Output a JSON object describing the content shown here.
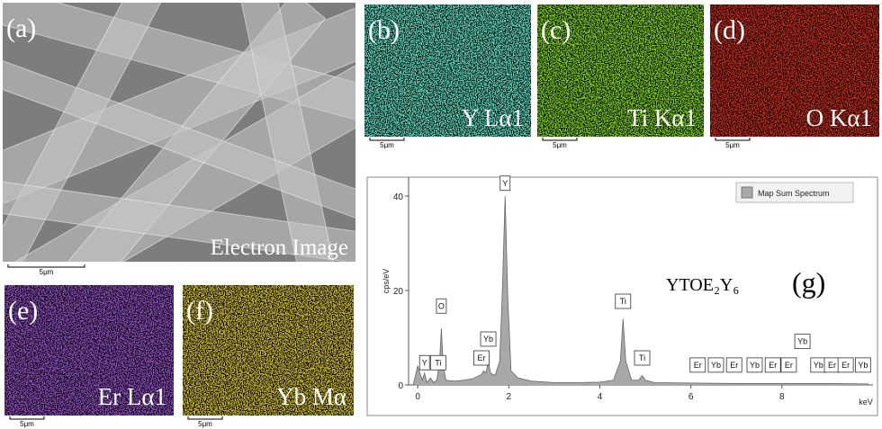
{
  "panels": [
    {
      "label": "(a)",
      "caption": "Electron Image",
      "scale_bar": "5μm"
    },
    {
      "label": "(b)",
      "caption": "Y Lα1",
      "scale_bar": "5μm",
      "color": "#58d6bd"
    },
    {
      "label": "(c)",
      "caption": "Ti Kα1",
      "scale_bar": "5μm",
      "color": "#7acc1a"
    },
    {
      "label": "(d)",
      "caption": "O Kα1",
      "scale_bar": "5μm",
      "color": "#c42a1a"
    },
    {
      "label": "(e)",
      "caption": "Er Lα1",
      "scale_bar": "5μm",
      "color": "#8c4cbc"
    },
    {
      "label": "(f)",
      "caption": "Yb Mα",
      "scale_bar": "5μm",
      "color": "#c9b62e"
    }
  ],
  "chart_data": {
    "type": "area",
    "panel_label": "(g)",
    "annotation": "YTOE₂Y₆",
    "y_label": "cps/eV",
    "x_label": "keV",
    "x": [
      -0.1,
      0,
      0.1,
      0.15,
      0.2,
      0.28,
      0.35,
      0.42,
      0.48,
      0.52,
      0.56,
      0.62,
      0.8,
      1.0,
      1.2,
      1.4,
      1.45,
      1.5,
      1.55,
      1.6,
      1.7,
      1.8,
      1.86,
      1.92,
      1.98,
      2.05,
      2.2,
      2.5,
      3,
      3.5,
      4,
      4.3,
      4.45,
      4.51,
      4.57,
      4.7,
      4.85,
      4.93,
      5.0,
      5.2,
      6,
      7,
      8,
      9,
      9.9
    ],
    "series": [
      {
        "name": "Map Sum Spectrum",
        "color": "#a8a8a8",
        "values": [
          0,
          4,
          1,
          2.5,
          0.5,
          1.5,
          0.5,
          1,
          5,
          12,
          4,
          1,
          0.8,
          1,
          1.3,
          2.2,
          3,
          2.5,
          5,
          2.5,
          2,
          5,
          20,
          40,
          18,
          3,
          1.5,
          0.8,
          0.5,
          0.5,
          0.6,
          1,
          5,
          14,
          5,
          1,
          1,
          2,
          1,
          0.5,
          0.4,
          0.3,
          0.3,
          0.3,
          0.2
        ]
      }
    ],
    "xlim": [
      -0.2,
      10
    ],
    "ylim": [
      0,
      44
    ],
    "xticks": [
      0,
      2,
      4,
      6,
      8
    ],
    "yticks": [
      0,
      20,
      40
    ],
    "peaks": [
      {
        "label": "Y",
        "x": 0.15,
        "y": 3
      },
      {
        "label": "Ti",
        "x": 0.45,
        "y": 3
      },
      {
        "label": "O",
        "x": 0.52,
        "y": 15
      },
      {
        "label": "Er",
        "x": 1.4,
        "y": 4
      },
      {
        "label": "Yb",
        "x": 1.55,
        "y": 8
      },
      {
        "label": "Y",
        "x": 1.92,
        "y": 41
      },
      {
        "label": "Ti",
        "x": 4.51,
        "y": 16
      },
      {
        "label": "Ti",
        "x": 4.93,
        "y": 4
      },
      {
        "label": "Er",
        "x": 6.15,
        "y": 2.5
      },
      {
        "label": "Yb",
        "x": 6.55,
        "y": 2.5
      },
      {
        "label": "Er",
        "x": 6.95,
        "y": 2.5
      },
      {
        "label": "Yb",
        "x": 7.4,
        "y": 2.5
      },
      {
        "label": "Er",
        "x": 7.8,
        "y": 2.5
      },
      {
        "label": "Er",
        "x": 8.15,
        "y": 2.5
      },
      {
        "label": "Yb",
        "x": 8.45,
        "y": 7.5
      },
      {
        "label": "Yb",
        "x": 8.8,
        "y": 2.5
      },
      {
        "label": "Er",
        "x": 9.1,
        "y": 2.5
      },
      {
        "label": "Er",
        "x": 9.4,
        "y": 2.5
      },
      {
        "label": "Yb",
        "x": 9.78,
        "y": 2.5
      }
    ]
  }
}
